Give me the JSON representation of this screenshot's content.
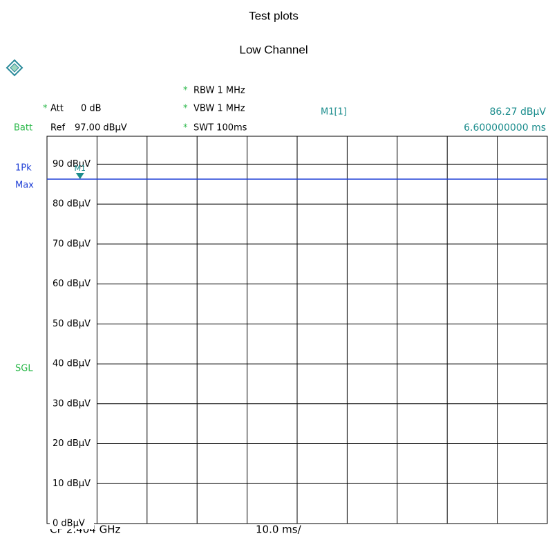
{
  "chart_data": {
    "type": "line",
    "title": "Test plots",
    "subtitle": "Low Channel",
    "header": {
      "star": "*",
      "att_name": "Att",
      "att": "0 dB",
      "batt": "Batt",
      "ref_name": "Ref",
      "ref": "97.00 dBµV",
      "rbw": "RBW 1 MHz",
      "vbw": "VBW 1 MHz",
      "swt": "SWT 100ms",
      "detector": "1Pk",
      "mode": "Max",
      "sweep": "SGL",
      "center": "CF 2.404 GHz",
      "span": "10.0 ms/"
    },
    "xlim": [
      0,
      100
    ],
    "xticks": [
      0,
      10,
      20,
      30,
      40,
      50,
      60,
      70,
      80,
      90,
      100
    ],
    "ylim": [
      0,
      97
    ],
    "yticks": [
      {
        "value": 0,
        "label": "0 dBµV"
      },
      {
        "value": 10,
        "label": "10 dBµV"
      },
      {
        "value": 20,
        "label": "20 dBµV"
      },
      {
        "value": 30,
        "label": "30 dBµV"
      },
      {
        "value": 40,
        "label": "40 dBµV"
      },
      {
        "value": 50,
        "label": "50 dBµV"
      },
      {
        "value": 60,
        "label": "60 dBµV"
      },
      {
        "value": 70,
        "label": "70 dBµV"
      },
      {
        "value": 80,
        "label": "80 dBµV"
      },
      {
        "value": 90,
        "label": "90 dBµV"
      }
    ],
    "grid": true,
    "series": [
      {
        "x": [
          0,
          100
        ],
        "values": [
          86.27,
          86.27
        ],
        "color": "#1f3fd6"
      }
    ],
    "markers": [
      {
        "name": "M1",
        "label": "M1[1]",
        "x": 6.6,
        "y": 86.27,
        "x_label": "6.600000000 ms",
        "y_label": "86.27 dBµV",
        "color": "#1a8c8c"
      }
    ]
  }
}
